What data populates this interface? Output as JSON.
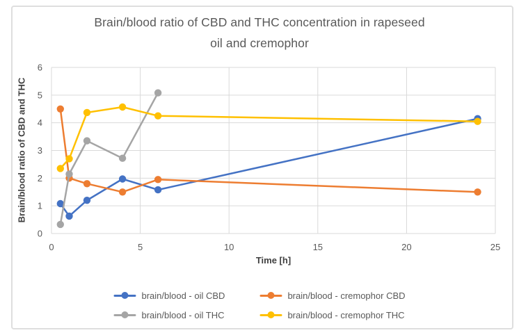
{
  "figure": {
    "title_lines": [
      "Brain/blood ratio of CBD and THC concentration in rapeseed",
      "oil and cremophor"
    ]
  },
  "chart_data": {
    "type": "line",
    "title": "Brain/blood ratio of CBD and THC concentration in rapeseed oil and cremophor",
    "xlabel": "Time [h]",
    "ylabel": "Brain/blood ratio of CBD and THC",
    "xlim": [
      0,
      25
    ],
    "ylim": [
      0,
      6
    ],
    "x_ticks": [
      "0",
      "5",
      "10",
      "15",
      "20",
      "25"
    ],
    "y_ticks": [
      "0",
      "1",
      "2",
      "3",
      "4",
      "5",
      "6"
    ],
    "grid": true,
    "marker": "circle",
    "legend_position": "bottom-center",
    "series": [
      {
        "key": "oil-cbd",
        "name": "brain/blood - oil CBD",
        "color": "#4472C4",
        "points": [
          [
            0.5,
            1.08
          ],
          [
            1,
            0.63
          ],
          [
            2,
            1.2
          ],
          [
            4,
            1.97
          ],
          [
            6,
            1.58
          ],
          [
            24,
            4.15
          ]
        ]
      },
      {
        "key": "cremophor-cbd",
        "name": "brain/blood - cremophor CBD",
        "color": "#ED7D31",
        "points": [
          [
            0.5,
            4.5
          ],
          [
            1,
            2.0
          ],
          [
            2,
            1.8
          ],
          [
            4,
            1.5
          ],
          [
            6,
            1.95
          ],
          [
            24,
            1.5
          ]
        ]
      },
      {
        "key": "oil-thc",
        "name": "brain/blood - oil THC",
        "color": "#A5A5A5",
        "points": [
          [
            0.5,
            0.33
          ],
          [
            1,
            2.15
          ],
          [
            2,
            3.35
          ],
          [
            4,
            2.72
          ],
          [
            6,
            5.08
          ]
        ]
      },
      {
        "key": "cremophor-thc",
        "name": "brain/blood - cremophor THC",
        "color": "#FFC000",
        "points": [
          [
            0.5,
            2.35
          ],
          [
            1,
            2.7
          ],
          [
            2,
            4.37
          ],
          [
            4,
            4.57
          ],
          [
            6,
            4.25
          ],
          [
            24,
            4.05
          ]
        ]
      }
    ],
    "colors": {
      "grid": "#D9D9D9",
      "tick_label": "#595959",
      "axis_title": "#404040",
      "chart_title": "#595959",
      "frame_border": "#DEDEDE"
    }
  }
}
